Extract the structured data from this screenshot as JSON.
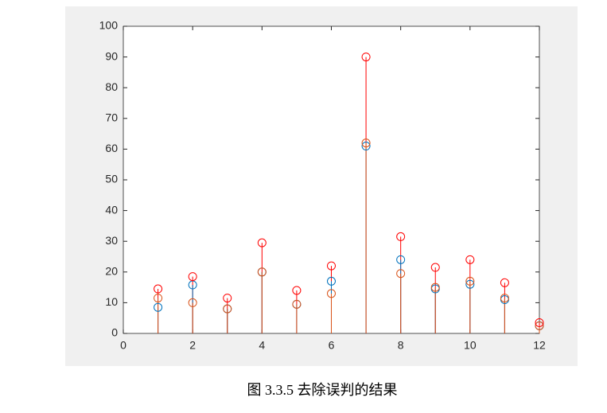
{
  "chart_data": {
    "type": "stem",
    "caption": "图 3.3.5  去除误判的结果",
    "x": [
      1,
      2,
      3,
      4,
      5,
      6,
      7,
      8,
      9,
      10,
      11,
      12
    ],
    "series": [
      {
        "color": "#0072BD",
        "values": [
          8.5,
          15.8,
          8,
          20,
          9.5,
          17,
          61,
          24,
          14.5,
          16,
          11,
          2.5
        ]
      },
      {
        "color": "#D95319",
        "values": [
          11.5,
          10,
          8,
          20,
          9.5,
          13,
          62,
          19.5,
          15,
          17,
          11.5,
          2.5
        ]
      },
      {
        "color": "#FF0000",
        "values": [
          14.5,
          18.5,
          11.5,
          29.5,
          14,
          22,
          90,
          31.5,
          21.5,
          24,
          16.5,
          3.5
        ]
      }
    ],
    "xlim": [
      0,
      12
    ],
    "xticks": [
      0,
      2,
      4,
      6,
      8,
      10,
      12
    ],
    "ylim": [
      0,
      100
    ],
    "yticks": [
      0,
      10,
      20,
      30,
      40,
      50,
      60,
      70,
      80,
      90,
      100
    ]
  }
}
